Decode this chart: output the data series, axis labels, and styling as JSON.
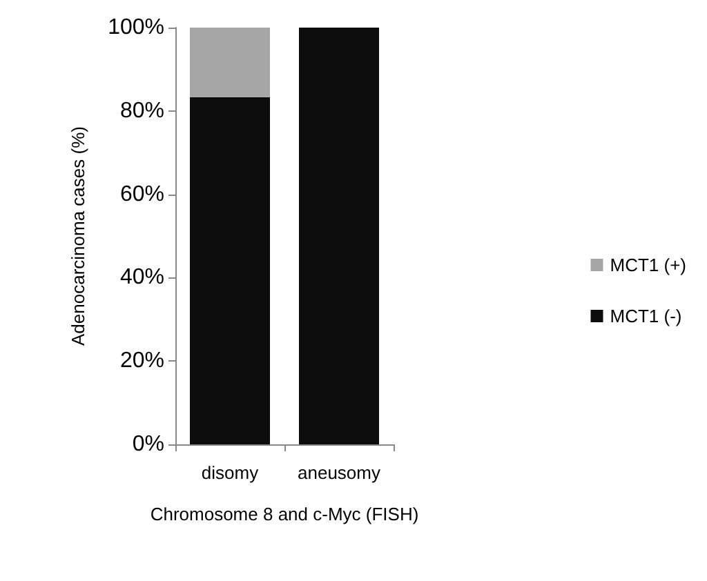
{
  "chart_data": {
    "type": "bar",
    "xlabel": "Chromosome 8 and c-Myc (FISH)",
    "ylabel": "Adenocarcinoma cases (%)",
    "categories": [
      "disomy",
      "aneusomy"
    ],
    "series": [
      {
        "name": "MCT1 (-)",
        "color": "#0d0d0d",
        "values": [
          83.3,
          100
        ]
      },
      {
        "name": "MCT1 (+)",
        "color": "#a6a6a6",
        "values": [
          16.7,
          0
        ]
      }
    ],
    "stacked": true,
    "ylim": [
      0,
      100
    ],
    "yticks": [
      {
        "value": 0,
        "label": "0%"
      },
      {
        "value": 20,
        "label": "20%"
      },
      {
        "value": 40,
        "label": "40%"
      },
      {
        "value": 60,
        "label": "60%"
      },
      {
        "value": 80,
        "label": "80%"
      },
      {
        "value": 100,
        "label": "100%"
      }
    ],
    "grid": false,
    "legend": "right"
  }
}
